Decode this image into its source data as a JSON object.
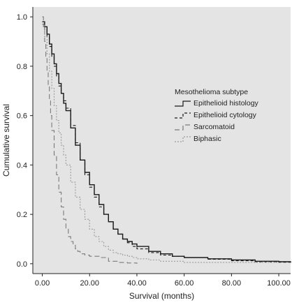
{
  "chart_data": {
    "type": "line",
    "step": true,
    "xlabel": "Survival (months)",
    "ylabel": "Cumulative survival",
    "xlim": [
      -4,
      105
    ],
    "ylim": [
      -0.04,
      1.04
    ],
    "x_ticks": [
      0,
      20,
      40,
      60,
      80,
      100
    ],
    "x_tick_labels": [
      "0.00",
      "20.00",
      "40.00",
      "60.00",
      "80.00",
      "100.00"
    ],
    "y_ticks": [
      0,
      0.2,
      0.4,
      0.6,
      0.8,
      1.0
    ],
    "y_tick_labels": [
      "0.0",
      "0.2",
      "0.4",
      "0.6",
      "0.8",
      "1.0"
    ],
    "background_color": "#e4e4e4",
    "grid": false,
    "legend": {
      "title": "Mesothelioma subtype",
      "placement": "right"
    },
    "series": [
      {
        "name": "Epithelioid histology",
        "color": "#1a1a1a",
        "dash": "solid",
        "x": [
          0,
          1,
          2,
          3,
          4,
          5,
          6,
          7,
          8,
          9,
          10,
          12,
          14,
          16,
          18,
          20,
          22,
          24,
          26,
          28,
          30,
          32,
          34,
          36,
          38,
          40,
          45,
          50,
          55,
          60,
          70,
          80,
          90,
          100,
          105
        ],
        "y": [
          0.98,
          0.96,
          0.93,
          0.89,
          0.85,
          0.81,
          0.77,
          0.73,
          0.69,
          0.65,
          0.62,
          0.55,
          0.48,
          0.42,
          0.37,
          0.32,
          0.28,
          0.24,
          0.2,
          0.17,
          0.14,
          0.12,
          0.1,
          0.09,
          0.08,
          0.07,
          0.05,
          0.04,
          0.03,
          0.025,
          0.02,
          0.015,
          0.01,
          0.008,
          0.005
        ]
      },
      {
        "name": "Epithelioid cytology",
        "color": "#1a1a1a",
        "dash": "4,3",
        "x": [
          0,
          1,
          2,
          3,
          4,
          5,
          6,
          7,
          8,
          9,
          10,
          12,
          14,
          16,
          18,
          20,
          22,
          24,
          26,
          28,
          30,
          32,
          34,
          36,
          38,
          40,
          45,
          50,
          55,
          60,
          70,
          80,
          90,
          100,
          105
        ],
        "y": [
          0.97,
          0.95,
          0.92,
          0.88,
          0.84,
          0.8,
          0.76,
          0.72,
          0.69,
          0.66,
          0.63,
          0.56,
          0.49,
          0.42,
          0.36,
          0.31,
          0.27,
          0.23,
          0.2,
          0.17,
          0.14,
          0.12,
          0.1,
          0.085,
          0.07,
          0.06,
          0.045,
          0.035,
          0.03,
          0.025,
          0.018,
          0.012,
          0.008,
          0.006,
          0.004
        ]
      },
      {
        "name": "Sarcomatoid",
        "color": "#7a7a7a",
        "dash": "7,4",
        "x": [
          0,
          0.5,
          1,
          1.5,
          2,
          2.5,
          3,
          3.5,
          4,
          5,
          6,
          7,
          8,
          9,
          10,
          11,
          12,
          13,
          14,
          15,
          16,
          18,
          20,
          24,
          28,
          32,
          36,
          40
        ],
        "y": [
          1.0,
          0.96,
          0.9,
          0.84,
          0.78,
          0.72,
          0.66,
          0.6,
          0.54,
          0.44,
          0.36,
          0.29,
          0.23,
          0.18,
          0.14,
          0.11,
          0.09,
          0.075,
          0.06,
          0.05,
          0.04,
          0.035,
          0.03,
          0.025,
          0.01,
          0.005,
          0.003,
          0.0
        ]
      },
      {
        "name": "Biphasic",
        "color": "#9a9a9a",
        "dash": "2,2",
        "x": [
          0,
          1,
          2,
          3,
          4,
          5,
          6,
          7,
          8,
          9,
          10,
          12,
          14,
          16,
          18,
          20,
          22,
          24,
          26,
          28,
          30,
          32,
          34,
          36,
          38,
          40,
          45,
          50,
          60,
          100
        ],
        "y": [
          0.97,
          0.92,
          0.85,
          0.78,
          0.71,
          0.64,
          0.58,
          0.53,
          0.48,
          0.44,
          0.4,
          0.33,
          0.27,
          0.22,
          0.18,
          0.14,
          0.11,
          0.09,
          0.07,
          0.055,
          0.045,
          0.04,
          0.035,
          0.03,
          0.025,
          0.02,
          0.015,
          0.01,
          0.005,
          0.003
        ]
      }
    ]
  }
}
